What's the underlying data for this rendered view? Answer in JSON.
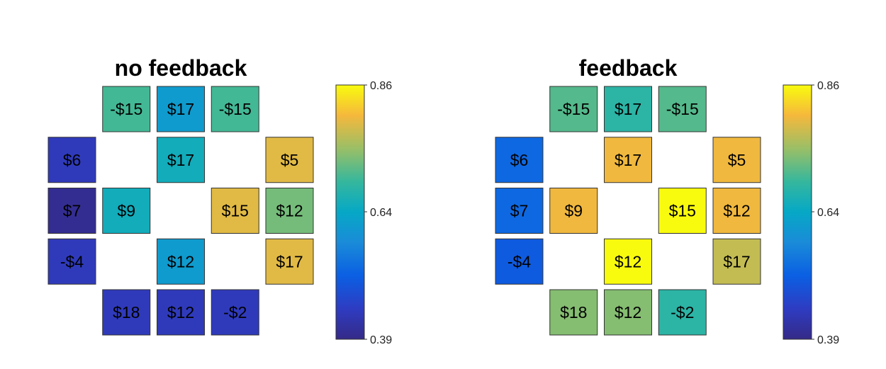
{
  "chart_data": [
    {
      "type": "heatmap",
      "title": "no feedback",
      "colorbar": {
        "min": 0.39,
        "max": 0.86,
        "ticks": [
          "0.39",
          "0.64",
          "0.86"
        ],
        "colormap": "parula"
      },
      "cells": [
        {
          "row": 0,
          "col": 1,
          "label": "-$15",
          "value": 0.69
        },
        {
          "row": 0,
          "col": 2,
          "label": "$17",
          "value": 0.6
        },
        {
          "row": 0,
          "col": 3,
          "label": "-$15",
          "value": 0.69
        },
        {
          "row": 1,
          "col": 0,
          "label": "$6",
          "value": 0.44
        },
        {
          "row": 1,
          "col": 2,
          "label": "$17",
          "value": 0.64
        },
        {
          "row": 1,
          "col": 4,
          "label": "$5",
          "value": 0.79
        },
        {
          "row": 2,
          "col": 0,
          "label": "$7",
          "value": 0.4
        },
        {
          "row": 2,
          "col": 1,
          "label": "$9",
          "value": 0.64
        },
        {
          "row": 2,
          "col": 3,
          "label": "$15",
          "value": 0.79
        },
        {
          "row": 2,
          "col": 4,
          "label": "$12",
          "value": 0.72
        },
        {
          "row": 3,
          "col": 0,
          "label": "-$4",
          "value": 0.44
        },
        {
          "row": 3,
          "col": 2,
          "label": "$12",
          "value": 0.6
        },
        {
          "row": 3,
          "col": 4,
          "label": "$17",
          "value": 0.79
        },
        {
          "row": 4,
          "col": 1,
          "label": "$18",
          "value": 0.44
        },
        {
          "row": 4,
          "col": 2,
          "label": "$12",
          "value": 0.44
        },
        {
          "row": 4,
          "col": 3,
          "label": "-$2",
          "value": 0.44
        }
      ]
    },
    {
      "type": "heatmap",
      "title": "feedback",
      "colorbar": {
        "min": 0.39,
        "max": 0.86,
        "ticks": [
          "0.39",
          "0.64",
          "0.86"
        ],
        "colormap": "parula"
      },
      "cells": [
        {
          "row": 0,
          "col": 1,
          "label": "-$15",
          "value": 0.7
        },
        {
          "row": 0,
          "col": 2,
          "label": "$17",
          "value": 0.67
        },
        {
          "row": 0,
          "col": 3,
          "label": "-$15",
          "value": 0.7
        },
        {
          "row": 1,
          "col": 0,
          "label": "$6",
          "value": 0.52
        },
        {
          "row": 1,
          "col": 2,
          "label": "$17",
          "value": 0.8
        },
        {
          "row": 1,
          "col": 4,
          "label": "$5",
          "value": 0.8
        },
        {
          "row": 2,
          "col": 0,
          "label": "$7",
          "value": 0.52
        },
        {
          "row": 2,
          "col": 1,
          "label": "$9",
          "value": 0.8
        },
        {
          "row": 2,
          "col": 3,
          "label": "$15",
          "value": 0.86
        },
        {
          "row": 2,
          "col": 4,
          "label": "$12",
          "value": 0.8
        },
        {
          "row": 3,
          "col": 0,
          "label": "-$4",
          "value": 0.5
        },
        {
          "row": 3,
          "col": 2,
          "label": "$12",
          "value": 0.86
        },
        {
          "row": 3,
          "col": 4,
          "label": "$17",
          "value": 0.77
        },
        {
          "row": 4,
          "col": 1,
          "label": "$18",
          "value": 0.73
        },
        {
          "row": 4,
          "col": 2,
          "label": "$12",
          "value": 0.73
        },
        {
          "row": 4,
          "col": 3,
          "label": "-$2",
          "value": 0.67
        }
      ]
    }
  ]
}
